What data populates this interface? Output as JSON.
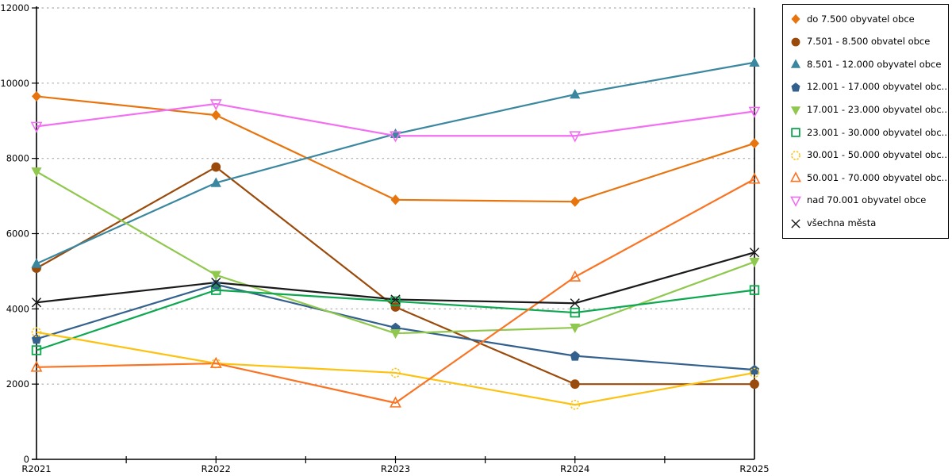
{
  "chart_data": {
    "type": "line",
    "title": "",
    "xlabel": "",
    "ylabel": "",
    "categories": [
      "R2021",
      "R2022",
      "R2023",
      "R2024",
      "R2025"
    ],
    "ylim": [
      0,
      12000
    ],
    "yticks": [
      0,
      2000,
      4000,
      6000,
      8000,
      10000,
      12000
    ],
    "grid": "horizontal-dashed",
    "grid_color": "#ADADAD",
    "axis_color": "#000000",
    "legend_position": "right-outside",
    "legend_border_color": "#000000",
    "series": [
      {
        "name": "do 7.500 obyvatel obce",
        "marker": "diamond",
        "color": "#E8740E",
        "values": [
          9650,
          9150,
          6900,
          6850,
          8400
        ]
      },
      {
        "name": "7.501 - 8.500 obvatel obce",
        "marker": "circle",
        "color": "#9A4A0A",
        "values": [
          5080,
          7770,
          4050,
          2000,
          2000
        ]
      },
      {
        "name": "8.501 - 12.000 obyvatel obce",
        "marker": "triangle-up",
        "color": "#3B87A0",
        "values": [
          5200,
          7350,
          8650,
          9700,
          10550
        ]
      },
      {
        "name": "12.001 - 17.000 obyvatel obc...",
        "marker": "pentagon",
        "color": "#33608C",
        "values": [
          3200,
          4650,
          3500,
          2750,
          2380
        ]
      },
      {
        "name": "17.001 - 23.000 obyvatel obc...",
        "marker": "triangle-down",
        "color": "#90C84F",
        "values": [
          7650,
          4900,
          3350,
          3500,
          5250
        ]
      },
      {
        "name": "23.001 - 30.000 obyvatel obc...",
        "marker": "square-open",
        "color": "#0CA74F",
        "values": [
          2900,
          4500,
          4200,
          3900,
          4500
        ]
      },
      {
        "name": "30.001 - 50.000 obyvatel obc...",
        "marker": "circle-open",
        "color": "#FDC20F",
        "values": [
          3380,
          2550,
          2300,
          1450,
          2300
        ]
      },
      {
        "name": "50.001 - 70.000 obyvatel obc...",
        "marker": "triangle-open",
        "color": "#FA7322",
        "values": [
          2450,
          2550,
          1500,
          4850,
          7450
        ]
      },
      {
        "name": "nad 70.001 obyvatel obce",
        "marker": "triangle-down-open",
        "color": "#F26FF2",
        "values": [
          8850,
          9450,
          8600,
          8600,
          9250
        ]
      },
      {
        "name": "všechna města",
        "marker": "x-cross",
        "color": "#1A1A1A",
        "values": [
          4170,
          4700,
          4250,
          4150,
          5500
        ]
      }
    ]
  }
}
